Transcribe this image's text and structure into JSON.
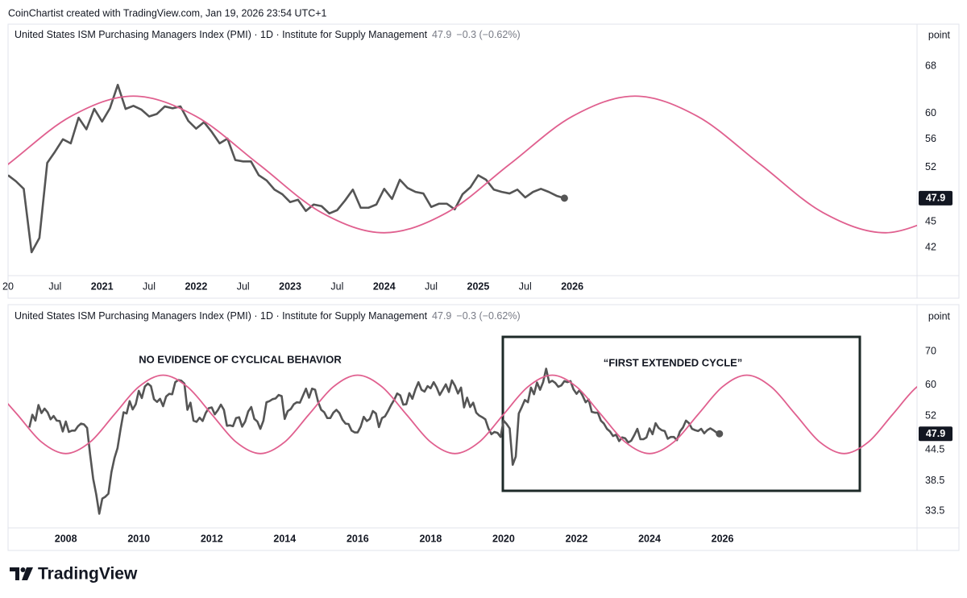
{
  "header": {
    "text": "CoinChartist created with TradingView.com, Jan 19, 2026 23:54 UTC+1"
  },
  "footer": {
    "logo": "TradingView"
  },
  "chart_data": [
    {
      "type": "line",
      "title": "United States ISM Purchasing Managers Index (PMI) · 1D · Institute for Supply Management",
      "price": 47.9,
      "change": "−0.3 (−0.62%)",
      "unit": "point",
      "log": true,
      "grid": false,
      "xlim": [
        "2020-01",
        "2029-09"
      ],
      "ylim": [
        39,
        76
      ],
      "yticks": [
        68,
        60,
        56,
        52,
        45,
        42
      ],
      "xticks": [
        {
          "value": "2020-01",
          "label": "20"
        },
        {
          "value": "2020-07",
          "label": "Jul"
        },
        {
          "value": "2021-01",
          "label": "2021"
        },
        {
          "value": "2021-07",
          "label": "Jul"
        },
        {
          "value": "2022-01",
          "label": "2022"
        },
        {
          "value": "2022-07",
          "label": "Jul"
        },
        {
          "value": "2023-01",
          "label": "2023"
        },
        {
          "value": "2023-07",
          "label": "Jul"
        },
        {
          "value": "2024-01",
          "label": "2024"
        },
        {
          "value": "2024-07",
          "label": "Jul"
        },
        {
          "value": "2025-01",
          "label": "2025"
        },
        {
          "value": "2025-07",
          "label": "Jul"
        },
        {
          "value": "2026-01",
          "label": "2026"
        }
      ],
      "series": [
        {
          "color": "#555555",
          "x": [
            "2020-01",
            "2020-02",
            "2020-03",
            "2020-04",
            "2020-05",
            "2020-06",
            "2020-07",
            "2020-08",
            "2020-09",
            "2020-10",
            "2020-11",
            "2020-12",
            "2021-01",
            "2021-02",
            "2021-03",
            "2021-04",
            "2021-05",
            "2021-06",
            "2021-07",
            "2021-08",
            "2021-09",
            "2021-10",
            "2021-11",
            "2021-12",
            "2022-01",
            "2022-02",
            "2022-03",
            "2022-04",
            "2022-05",
            "2022-06",
            "2022-07",
            "2022-08",
            "2022-09",
            "2022-10",
            "2022-11",
            "2022-12",
            "2023-01",
            "2023-02",
            "2023-03",
            "2023-04",
            "2023-05",
            "2023-06",
            "2023-07",
            "2023-08",
            "2023-09",
            "2023-10",
            "2023-11",
            "2023-12",
            "2024-01",
            "2024-02",
            "2024-03",
            "2024-04",
            "2024-05",
            "2024-06",
            "2024-07",
            "2024-08",
            "2024-09",
            "2024-10",
            "2024-11",
            "2024-12",
            "2025-01",
            "2025-02",
            "2025-03",
            "2025-04",
            "2025-05",
            "2025-06",
            "2025-07",
            "2025-08",
            "2025-09",
            "2025-10",
            "2025-11",
            "2025-12"
          ],
          "values": [
            50.9,
            50.1,
            49.1,
            41.5,
            43.1,
            52.6,
            54.2,
            56.0,
            55.4,
            59.3,
            57.5,
            60.7,
            58.7,
            60.8,
            64.7,
            60.7,
            61.2,
            60.6,
            59.5,
            59.9,
            61.1,
            60.8,
            61.1,
            58.8,
            57.6,
            58.6,
            57.1,
            55.4,
            56.1,
            53.0,
            52.8,
            52.8,
            50.9,
            50.2,
            49.0,
            48.4,
            47.4,
            47.7,
            46.3,
            47.1,
            46.9,
            46.0,
            46.4,
            47.6,
            49.0,
            46.7,
            46.7,
            47.1,
            49.1,
            47.8,
            50.3,
            49.2,
            48.7,
            48.5,
            46.8,
            47.2,
            47.2,
            46.5,
            48.4,
            49.3,
            50.9,
            50.3,
            49.0,
            48.7,
            48.5,
            49.0,
            48.0,
            48.7,
            49.1,
            48.7,
            48.2,
            47.9
          ]
        },
        {
          "color": "#e0608f",
          "smooth": true,
          "x": [
            "2019-05",
            "2020-01",
            "2020-09",
            "2021-05",
            "2022-01",
            "2022-09",
            "2023-05",
            "2024-01",
            "2024-09",
            "2025-05",
            "2026-01",
            "2026-09",
            "2027-05",
            "2028-01",
            "2028-09",
            "2029-05",
            "2030-01"
          ],
          "values": [
            46.1,
            52.4,
            59.5,
            62.8,
            59.5,
            52.4,
            46.1,
            43.7,
            46.1,
            52.4,
            59.5,
            62.8,
            59.5,
            52.4,
            46.1,
            43.7,
            46.1
          ]
        }
      ]
    },
    {
      "type": "line",
      "title": "United States ISM Purchasing Managers Index (PMI) · 1D · Institute for Supply Management",
      "price": 47.9,
      "change": "−0.3 (−0.62%)",
      "unit": "point",
      "log": true,
      "grid": false,
      "xlim": [
        "2006-06",
        "2031-05"
      ],
      "ylim": [
        31,
        87
      ],
      "yticks": [
        70,
        60,
        52,
        44.5,
        38.5,
        33.5
      ],
      "xticks": [
        {
          "value": "2008-01",
          "label": "2008"
        },
        {
          "value": "2010-01",
          "label": "2010"
        },
        {
          "value": "2012-01",
          "label": "2012"
        },
        {
          "value": "2014-01",
          "label": "2014"
        },
        {
          "value": "2016-01",
          "label": "2016"
        },
        {
          "value": "2018-01",
          "label": "2018"
        },
        {
          "value": "2020-01",
          "label": "2020"
        },
        {
          "value": "2022-01",
          "label": "2022"
        },
        {
          "value": "2024-01",
          "label": "2024"
        },
        {
          "value": "2026-01",
          "label": "2026"
        }
      ],
      "annotations": [
        "NO EVIDENCE OF CYCLICAL BEHAVIOR",
        "“FIRST EXTENDED CYCLE”"
      ],
      "series": [
        {
          "color": "#555555",
          "x": [
            "2007-01",
            "2007-02",
            "2007-03",
            "2007-04",
            "2007-05",
            "2007-06",
            "2007-07",
            "2007-08",
            "2007-09",
            "2007-10",
            "2007-11",
            "2007-12",
            "2008-01",
            "2008-02",
            "2008-03",
            "2008-04",
            "2008-05",
            "2008-06",
            "2008-07",
            "2008-08",
            "2008-09",
            "2008-10",
            "2008-11",
            "2008-12",
            "2009-01",
            "2009-02",
            "2009-03",
            "2009-04",
            "2009-05",
            "2009-06",
            "2009-07",
            "2009-08",
            "2009-09",
            "2009-10",
            "2009-11",
            "2009-12",
            "2010-01",
            "2010-02",
            "2010-03",
            "2010-04",
            "2010-05",
            "2010-06",
            "2010-07",
            "2010-08",
            "2010-09",
            "2010-10",
            "2010-11",
            "2010-12",
            "2011-01",
            "2011-02",
            "2011-03",
            "2011-04",
            "2011-05",
            "2011-06",
            "2011-07",
            "2011-08",
            "2011-09",
            "2011-10",
            "2011-11",
            "2011-12",
            "2012-01",
            "2012-02",
            "2012-03",
            "2012-04",
            "2012-05",
            "2012-06",
            "2012-07",
            "2012-08",
            "2012-09",
            "2012-10",
            "2012-11",
            "2012-12",
            "2013-01",
            "2013-02",
            "2013-03",
            "2013-04",
            "2013-05",
            "2013-06",
            "2013-07",
            "2013-08",
            "2013-09",
            "2013-10",
            "2013-11",
            "2013-12",
            "2014-01",
            "2014-02",
            "2014-03",
            "2014-04",
            "2014-05",
            "2014-06",
            "2014-07",
            "2014-08",
            "2014-09",
            "2014-10",
            "2014-11",
            "2014-12",
            "2015-01",
            "2015-02",
            "2015-03",
            "2015-04",
            "2015-05",
            "2015-06",
            "2015-07",
            "2015-08",
            "2015-09",
            "2015-10",
            "2015-11",
            "2015-12",
            "2016-01",
            "2016-02",
            "2016-03",
            "2016-04",
            "2016-05",
            "2016-06",
            "2016-07",
            "2016-08",
            "2016-09",
            "2016-10",
            "2016-11",
            "2016-12",
            "2017-01",
            "2017-02",
            "2017-03",
            "2017-04",
            "2017-05",
            "2017-06",
            "2017-07",
            "2017-08",
            "2017-09",
            "2017-10",
            "2017-11",
            "2017-12",
            "2018-01",
            "2018-02",
            "2018-03",
            "2018-04",
            "2018-05",
            "2018-06",
            "2018-07",
            "2018-08",
            "2018-09",
            "2018-10",
            "2018-11",
            "2018-12",
            "2019-01",
            "2019-02",
            "2019-03",
            "2019-04",
            "2019-05",
            "2019-06",
            "2019-07",
            "2019-08",
            "2019-09",
            "2019-10",
            "2019-11",
            "2019-12",
            "2020-01",
            "2020-02",
            "2020-03",
            "2020-04",
            "2020-05",
            "2020-06",
            "2020-07",
            "2020-08",
            "2020-09",
            "2020-10",
            "2020-11",
            "2020-12",
            "2021-01",
            "2021-02",
            "2021-03",
            "2021-04",
            "2021-05",
            "2021-06",
            "2021-07",
            "2021-08",
            "2021-09",
            "2021-10",
            "2021-11",
            "2021-12",
            "2022-01",
            "2022-02",
            "2022-03",
            "2022-04",
            "2022-05",
            "2022-06",
            "2022-07",
            "2022-08",
            "2022-09",
            "2022-10",
            "2022-11",
            "2022-12",
            "2023-01",
            "2023-02",
            "2023-03",
            "2023-04",
            "2023-05",
            "2023-06",
            "2023-07",
            "2023-08",
            "2023-09",
            "2023-10",
            "2023-11",
            "2023-12",
            "2024-01",
            "2024-02",
            "2024-03",
            "2024-04",
            "2024-05",
            "2024-06",
            "2024-07",
            "2024-08",
            "2024-09",
            "2024-10",
            "2024-11",
            "2024-12",
            "2025-01",
            "2025-02",
            "2025-03",
            "2025-04",
            "2025-05",
            "2025-06",
            "2025-07",
            "2025-08",
            "2025-09",
            "2025-10",
            "2025-11",
            "2025-12"
          ],
          "values": [
            49.3,
            52.3,
            50.9,
            54.7,
            52.7,
            53.8,
            52.9,
            51.2,
            52.0,
            50.9,
            50.8,
            48.4,
            50.7,
            48.3,
            48.6,
            48.6,
            49.6,
            50.2,
            50.0,
            49.2,
            43.5,
            38.9,
            36.2,
            33.1,
            35.5,
            35.8,
            36.3,
            40.1,
            42.8,
            44.8,
            48.9,
            52.9,
            52.6,
            55.7,
            53.6,
            54.9,
            58.4,
            56.5,
            59.6,
            60.4,
            59.7,
            56.2,
            55.5,
            56.3,
            54.4,
            56.9,
            57.6,
            57.5,
            60.8,
            61.4,
            61.2,
            60.4,
            53.5,
            55.3,
            50.9,
            50.6,
            51.6,
            50.8,
            52.7,
            53.9,
            54.1,
            52.4,
            53.4,
            54.8,
            53.5,
            49.7,
            49.8,
            49.6,
            51.5,
            51.7,
            49.5,
            50.7,
            53.1,
            54.2,
            51.3,
            50.7,
            49.0,
            50.9,
            55.4,
            55.7,
            56.2,
            56.4,
            57.3,
            57.0,
            51.3,
            53.2,
            53.7,
            54.9,
            55.4,
            55.3,
            57.1,
            59.0,
            56.6,
            59.0,
            58.7,
            55.5,
            53.5,
            52.9,
            51.5,
            51.5,
            52.8,
            53.5,
            52.7,
            51.1,
            50.2,
            50.1,
            48.6,
            48.2,
            48.2,
            49.5,
            51.8,
            50.8,
            51.3,
            53.2,
            52.6,
            49.4,
            51.5,
            51.9,
            53.2,
            54.7,
            56.0,
            57.7,
            57.2,
            54.8,
            54.9,
            57.8,
            56.3,
            58.8,
            60.8,
            58.7,
            58.2,
            59.7,
            59.1,
            60.8,
            59.3,
            57.3,
            58.7,
            60.2,
            58.1,
            61.3,
            59.8,
            57.7,
            59.3,
            54.1,
            56.6,
            54.2,
            55.3,
            52.8,
            52.1,
            51.7,
            51.2,
            49.1,
            47.8,
            48.3,
            48.1,
            47.2,
            50.9,
            50.1,
            49.1,
            41.5,
            43.1,
            52.6,
            54.2,
            56.0,
            55.4,
            59.3,
            57.5,
            60.7,
            58.7,
            60.8,
            64.7,
            60.7,
            61.2,
            60.6,
            59.5,
            59.9,
            61.1,
            60.8,
            61.1,
            58.8,
            57.6,
            58.6,
            57.1,
            55.4,
            56.1,
            53.0,
            52.8,
            52.8,
            50.9,
            50.2,
            49.0,
            48.4,
            47.4,
            47.7,
            46.3,
            47.1,
            46.9,
            46.0,
            46.4,
            47.6,
            49.0,
            46.7,
            46.7,
            47.1,
            49.1,
            47.8,
            50.3,
            49.2,
            48.7,
            48.5,
            46.8,
            47.2,
            47.2,
            46.5,
            48.4,
            49.3,
            50.9,
            50.3,
            49.0,
            48.7,
            48.5,
            49.0,
            48.0,
            48.7,
            49.1,
            48.7,
            48.2,
            47.9
          ]
        },
        {
          "color": "#e0608f",
          "smooth": true,
          "x": [
            "2006-01",
            "2006-09",
            "2007-05",
            "2008-01",
            "2008-09",
            "2009-05",
            "2010-01",
            "2010-09",
            "2011-05",
            "2012-01",
            "2012-09",
            "2013-05",
            "2014-01",
            "2014-09",
            "2015-05",
            "2016-01",
            "2016-09",
            "2017-05",
            "2018-01",
            "2018-09",
            "2019-05",
            "2020-01",
            "2020-09",
            "2021-05",
            "2022-01",
            "2022-09",
            "2023-05",
            "2024-01",
            "2024-09",
            "2025-05",
            "2026-01",
            "2026-09",
            "2027-05",
            "2028-01",
            "2028-09",
            "2029-05",
            "2030-01",
            "2030-09",
            "2031-05",
            "2032-01"
          ],
          "values": [
            59.5,
            52.4,
            46.1,
            43.7,
            46.1,
            52.4,
            59.5,
            62.8,
            59.5,
            52.4,
            46.1,
            43.7,
            46.1,
            52.4,
            59.5,
            62.8,
            59.5,
            52.4,
            46.1,
            43.7,
            46.1,
            52.4,
            59.5,
            62.8,
            59.5,
            52.4,
            46.1,
            43.7,
            46.1,
            52.4,
            59.5,
            62.8,
            59.5,
            52.4,
            46.1,
            43.7,
            46.1,
            52.4,
            59.5,
            62.8
          ]
        }
      ]
    }
  ]
}
